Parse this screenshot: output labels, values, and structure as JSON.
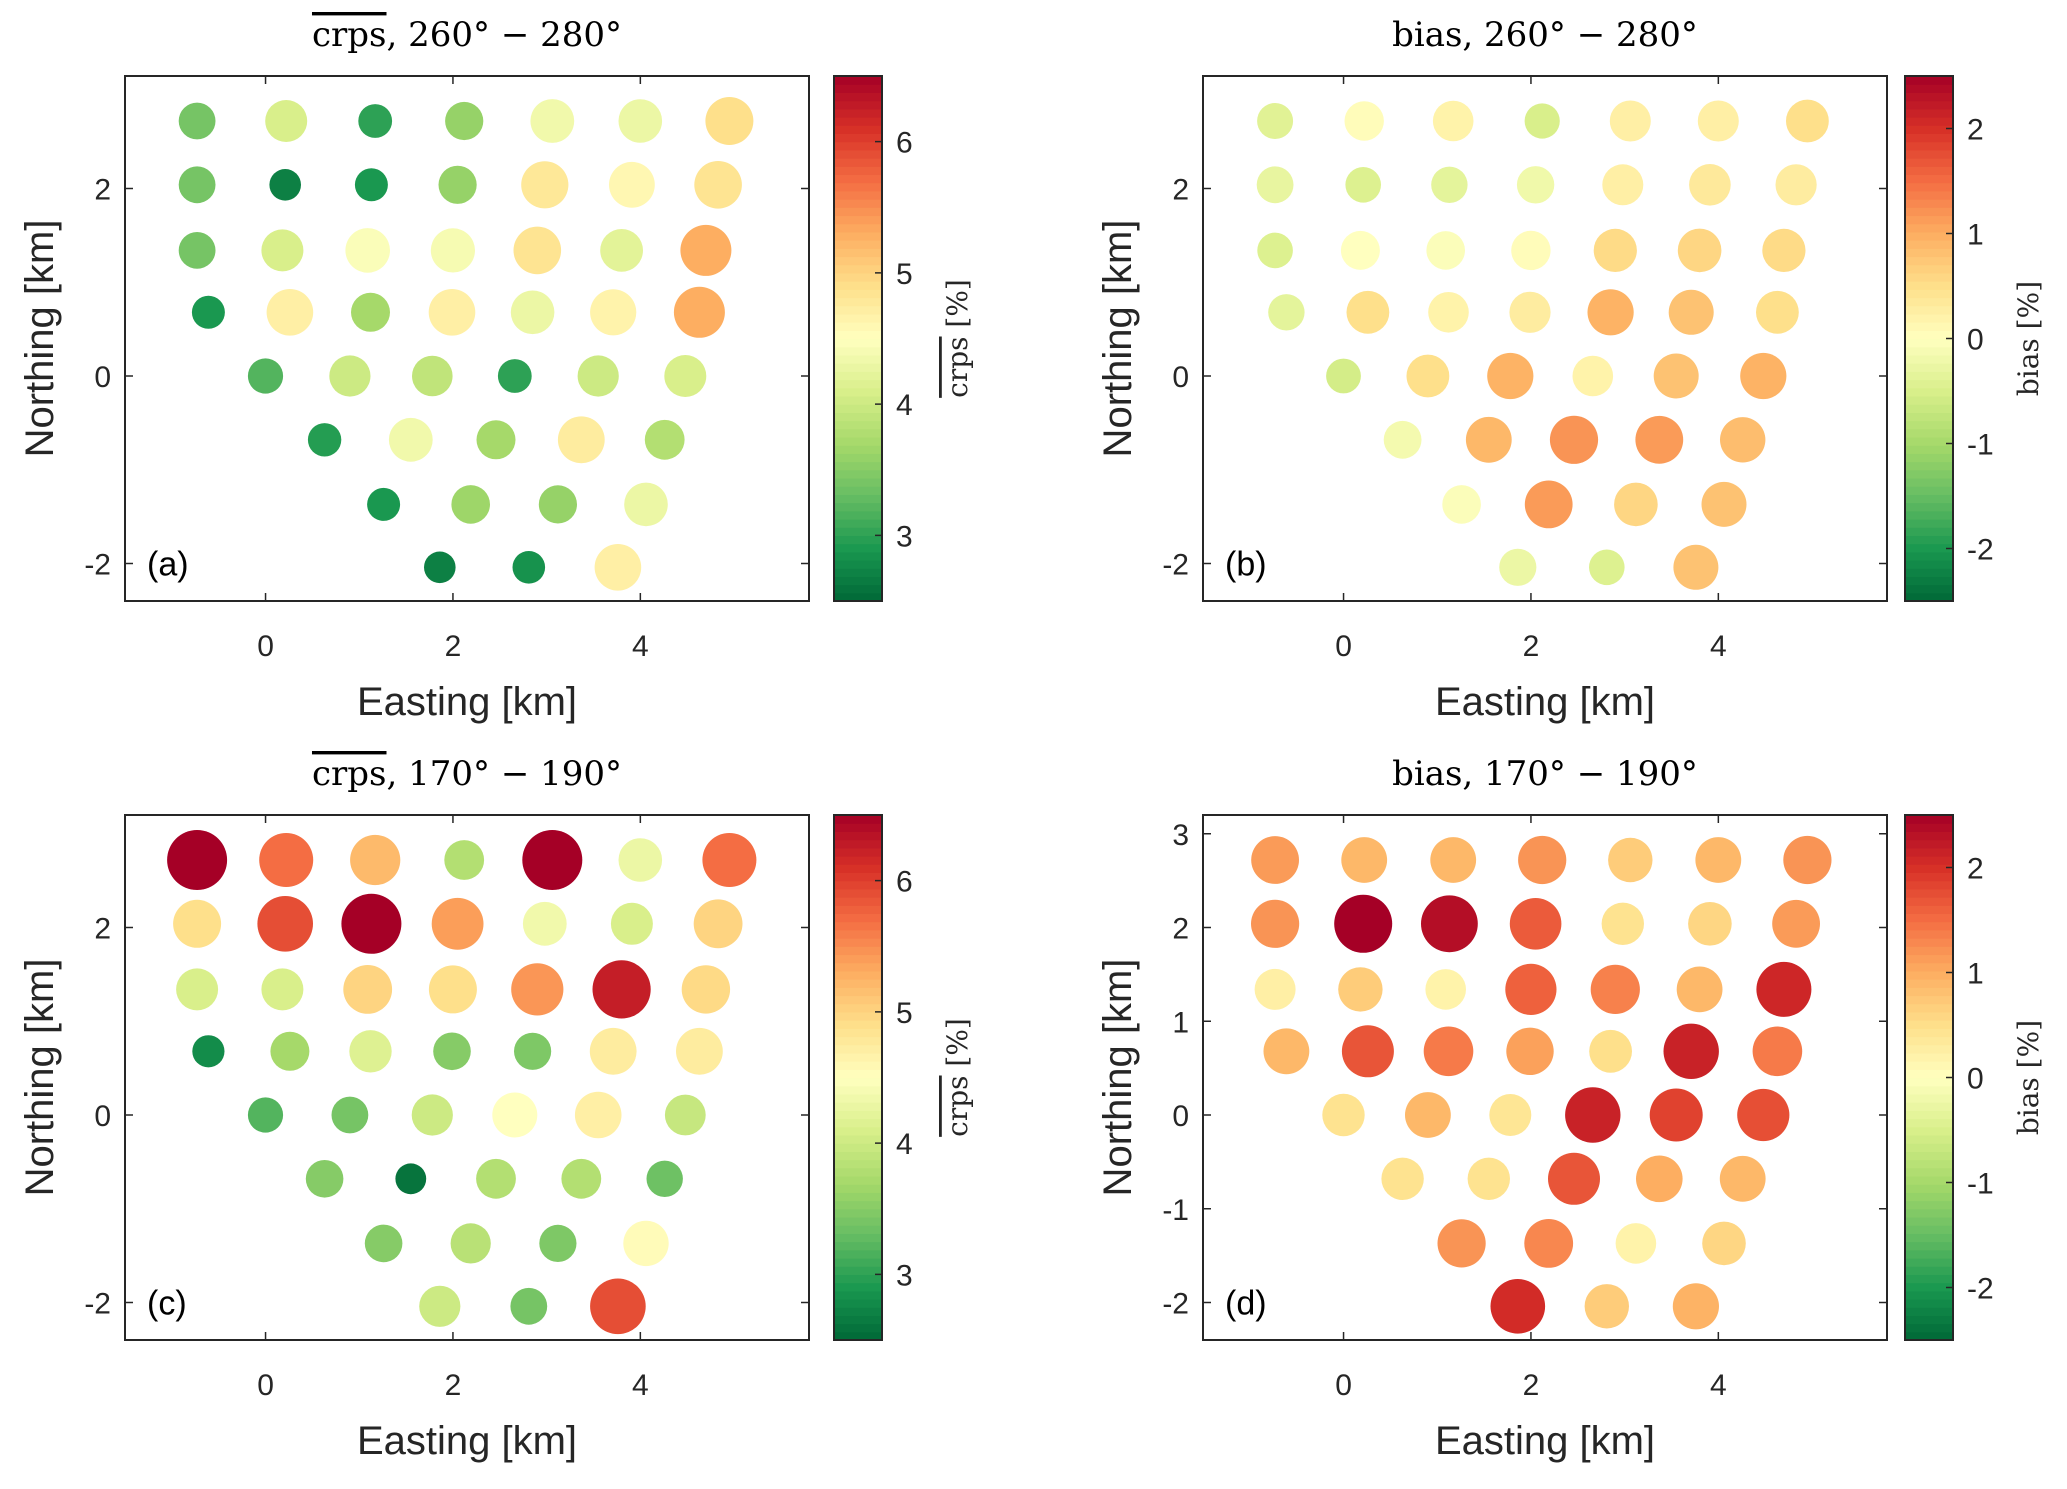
{
  "figure": {
    "stations": {
      "x": [
        -0.73,
        0.22,
        1.17,
        2.12,
        3.06,
        4.0,
        4.95,
        -0.73,
        0.21,
        1.13,
        2.05,
        2.98,
        3.91,
        4.83,
        -0.73,
        0.18,
        1.09,
        2.0,
        2.9,
        3.8,
        4.7,
        -0.61,
        0.26,
        1.12,
        1.99,
        2.85,
        3.71,
        4.63,
        0.0,
        0.9,
        1.78,
        2.66,
        3.55,
        4.48,
        0.63,
        1.55,
        2.46,
        3.37,
        4.26,
        1.26,
        2.19,
        3.12,
        4.06,
        1.86,
        2.81,
        3.76
      ],
      "y": [
        2.72,
        2.72,
        2.72,
        2.72,
        2.72,
        2.72,
        2.72,
        2.04,
        2.04,
        2.04,
        2.04,
        2.04,
        2.04,
        2.04,
        1.34,
        1.34,
        1.34,
        1.34,
        1.34,
        1.34,
        1.34,
        0.68,
        0.68,
        0.68,
        0.68,
        0.68,
        0.68,
        0.68,
        0.0,
        0.0,
        0.0,
        0.0,
        0.0,
        0.0,
        -0.68,
        -0.68,
        -0.68,
        -0.68,
        -0.68,
        -1.37,
        -1.37,
        -1.37,
        -1.37,
        -2.04,
        -2.04,
        -2.04
      ]
    }
  },
  "chart_data": [
    {
      "type": "scatter",
      "panel": "a",
      "panel_tag": "(a)",
      "title": "crps, 260° − 280°",
      "title_overline": "crps",
      "title_rest": ", 260° − 280°",
      "xlabel": "Easting [km]",
      "ylabel": "Northing [km]",
      "xlim": [
        -1.5,
        5.8
      ],
      "ylim": [
        -2.4,
        3.2
      ],
      "xticks": [
        0,
        2,
        4
      ],
      "xtick_labels": [
        "0",
        "2",
        "4"
      ],
      "yticks": [
        -2,
        0,
        2
      ],
      "ytick_labels": [
        "-2",
        "0",
        "2"
      ],
      "colorbar": {
        "label_overline": "crps",
        "label_rest": " [%]",
        "range": [
          2.5,
          6.5
        ],
        "ticks": [
          3,
          4,
          5,
          6
        ],
        "tick_labels": [
          "3",
          "4",
          "5",
          "6"
        ],
        "colormap": "RdYlGn_r"
      },
      "values": [
        3.4,
        4.1,
        3.0,
        3.6,
        4.35,
        4.3,
        4.9,
        3.4,
        2.7,
        2.9,
        3.6,
        4.8,
        4.6,
        4.85,
        3.4,
        4.1,
        4.45,
        4.4,
        4.85,
        4.2,
        5.3,
        2.9,
        4.7,
        3.7,
        4.7,
        4.3,
        4.65,
        5.3,
        3.2,
        4.0,
        3.9,
        3.0,
        4.0,
        4.1,
        2.95,
        4.35,
        3.7,
        4.75,
        3.8,
        2.9,
        3.65,
        3.6,
        4.3,
        2.7,
        2.85,
        4.7
      ]
    },
    {
      "type": "scatter",
      "panel": "b",
      "panel_tag": "(b)",
      "title": "bias, 260° − 280°",
      "title_overline": "",
      "title_rest": "bias, 260° − 280°",
      "xlabel": "Easting [km]",
      "ylabel": "Northing [km]",
      "xlim": [
        -1.5,
        5.8
      ],
      "ylim": [
        -2.4,
        3.2
      ],
      "xticks": [
        0,
        2,
        4
      ],
      "xtick_labels": [
        "0",
        "2",
        "4"
      ],
      "yticks": [
        -2,
        0,
        2
      ],
      "ytick_labels": [
        "-2",
        "0",
        "2"
      ],
      "colorbar": {
        "label_overline": "",
        "label_rest": "bias [%]",
        "range": [
          -2.5,
          2.5
        ],
        "ticks": [
          -2,
          -1,
          0,
          1,
          2
        ],
        "tick_labels": [
          "-2",
          "-1",
          "0",
          "1",
          "2"
        ],
        "colormap": "RdYlGn_r"
      },
      "values": [
        -0.4,
        0.05,
        0.2,
        -0.5,
        0.25,
        0.25,
        0.5,
        -0.3,
        -0.45,
        -0.35,
        -0.2,
        0.25,
        0.35,
        0.3,
        -0.45,
        0.0,
        -0.05,
        0.05,
        0.55,
        0.6,
        0.55,
        -0.35,
        0.5,
        0.2,
        0.3,
        0.95,
        0.8,
        0.5,
        -0.55,
        0.5,
        0.95,
        0.2,
        0.8,
        0.95,
        -0.15,
        0.9,
        1.2,
        1.15,
        0.85,
        -0.05,
        1.15,
        0.6,
        0.8,
        -0.25,
        -0.45,
        0.8
      ]
    },
    {
      "type": "scatter",
      "panel": "c",
      "panel_tag": "(c)",
      "title": "crps, 170° − 190°",
      "title_overline": "crps",
      "title_rest": ", 170° − 190°",
      "xlabel": "Easting [km]",
      "ylabel": "Northing [km]",
      "xlim": [
        -1.5,
        5.8
      ],
      "ylim": [
        -2.4,
        3.2
      ],
      "xticks": [
        0,
        2,
        4
      ],
      "xtick_labels": [
        "0",
        "2",
        "4"
      ],
      "yticks": [
        -2,
        0,
        2
      ],
      "ytick_labels": [
        "-2",
        "0",
        "2"
      ],
      "colorbar": {
        "label_overline": "crps",
        "label_rest": " [%]",
        "range": [
          2.5,
          6.5
        ],
        "ticks": [
          3,
          4,
          5,
          6
        ],
        "tick_labels": [
          "3",
          "4",
          "5",
          "6"
        ],
        "colormap": "RdYlGn_r"
      },
      "values": [
        6.5,
        5.7,
        5.2,
        3.8,
        6.5,
        4.3,
        5.7,
        4.9,
        5.9,
        6.5,
        5.4,
        4.35,
        4.1,
        5.0,
        4.1,
        4.1,
        5.0,
        4.9,
        5.45,
        6.25,
        4.95,
        2.8,
        3.7,
        4.15,
        3.5,
        3.45,
        4.75,
        4.75,
        3.2,
        3.4,
        4.0,
        4.5,
        4.7,
        3.95,
        3.5,
        2.6,
        3.8,
        3.8,
        3.35,
        3.5,
        3.85,
        3.45,
        4.55,
        4.0,
        3.4,
        5.9
      ]
    },
    {
      "type": "scatter",
      "panel": "d",
      "panel_tag": "(d)",
      "title": "bias, 170° − 190°",
      "title_overline": "",
      "title_rest": "bias, 170° − 190°",
      "xlabel": "Easting [km]",
      "ylabel": "Northing [km]",
      "xlim": [
        -1.5,
        5.8
      ],
      "ylim": [
        -2.4,
        3.2
      ],
      "xticks": [
        0,
        2,
        4
      ],
      "xtick_labels": [
        "0",
        "2",
        "4"
      ],
      "yticks": [
        -2,
        -1,
        0,
        1,
        2,
        3
      ],
      "ytick_labels": [
        "-2",
        "-1",
        "0",
        "1",
        "2",
        "3"
      ],
      "colorbar": {
        "label_overline": "",
        "label_rest": "bias [%]",
        "range": [
          -2.5,
          2.5
        ],
        "ticks": [
          -2,
          -1,
          0,
          1,
          2
        ],
        "tick_labels": [
          "-2",
          "-1",
          "0",
          "1",
          "2"
        ],
        "colormap": "RdYlGn_r"
      },
      "values": [
        1.15,
        0.9,
        0.9,
        1.2,
        0.7,
        0.9,
        1.2,
        1.2,
        2.5,
        2.35,
        1.65,
        0.45,
        0.6,
        1.15,
        0.25,
        0.7,
        0.2,
        1.6,
        1.35,
        0.9,
        2.1,
        0.9,
        1.7,
        1.4,
        1.1,
        0.5,
        2.15,
        1.4,
        0.45,
        0.9,
        0.4,
        2.15,
        1.85,
        1.75,
        0.45,
        0.45,
        1.7,
        1.0,
        0.9,
        1.2,
        1.3,
        0.2,
        0.6,
        2.05,
        0.7,
        0.95
      ]
    }
  ]
}
